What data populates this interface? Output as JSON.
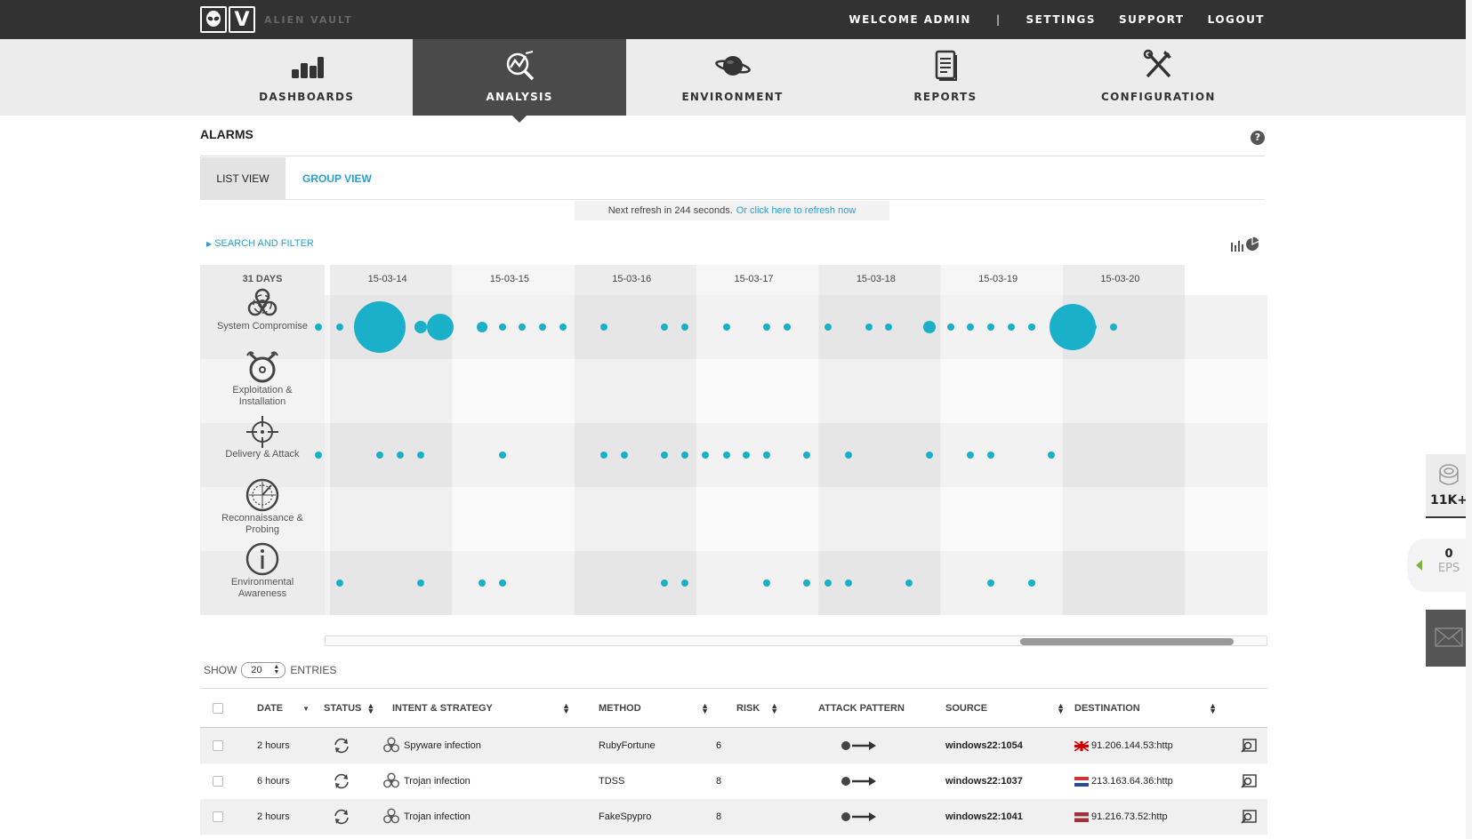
{
  "app": {
    "logo_text": "ALIEN VAULT",
    "logo_letter": "V"
  },
  "topbar": {
    "welcome": "WELCOME ADMIN",
    "separator": "|",
    "settings": "SETTINGS",
    "support": "SUPPORT",
    "logout": "LOGOUT"
  },
  "nav": [
    {
      "label": "DASHBOARDS",
      "icon": "bar-chart-icon",
      "active": false
    },
    {
      "label": "ANALYSIS",
      "icon": "analysis-icon",
      "active": true
    },
    {
      "label": "ENVIRONMENT",
      "icon": "planet-icon",
      "active": false
    },
    {
      "label": "REPORTS",
      "icon": "document-icon",
      "active": false
    },
    {
      "label": "CONFIGURATION",
      "icon": "tools-icon",
      "active": false
    }
  ],
  "page": {
    "title": "ALARMS",
    "help": "?"
  },
  "tabs": {
    "list_view": "LIST VIEW",
    "group_view": "GROUP VIEW"
  },
  "refresh": {
    "text": "Next refresh in 244 seconds.",
    "link": "Or click here to refresh now"
  },
  "search_filter": "SEARCH AND FILTER",
  "timeline": {
    "range_label": "31 DAYS",
    "dates": [
      "15-03-14",
      "15-03-15",
      "15-03-16",
      "15-03-17",
      "15-03-18",
      "15-03-19",
      "15-03-20"
    ],
    "categories": [
      {
        "line1": "System Compromise",
        "line2": "",
        "icon": "biohazard-icon"
      },
      {
        "line1": "Exploitation &",
        "line2": "Installation",
        "icon": "bomb-icon"
      },
      {
        "line1": "Delivery & Attack",
        "line2": "",
        "icon": "crosshair-icon"
      },
      {
        "line1": "Reconnaissance &",
        "line2": "Probing",
        "icon": "radar-icon"
      },
      {
        "line1": "Environmental",
        "line2": "Awareness",
        "icon": "info-icon"
      }
    ]
  },
  "show_entries": {
    "show": "SHOW",
    "value": "20",
    "entries": "ENTRIES"
  },
  "table": {
    "headers": {
      "date": "DATE",
      "status": "STATUS",
      "intent": "INTENT & STRATEGY",
      "method": "METHOD",
      "risk": "RISK",
      "pattern": "ATTACK PATTERN",
      "source": "SOURCE",
      "destination": "DESTINATION"
    },
    "rows": [
      {
        "date": "2 hours",
        "intent": "Spyware infection",
        "method": "RubyFortune",
        "risk": "6",
        "source": "windows22:1054",
        "destination": "91.206.144.53:http",
        "flag": "uk"
      },
      {
        "date": "6 hours",
        "intent": "Trojan infection",
        "method": "TDSS",
        "risk": "8",
        "source": "windows22:1037",
        "destination": "213.163.64.36:http",
        "flag": "nl"
      },
      {
        "date": "2 hours",
        "intent": "Trojan infection",
        "method": "FakeSpypro",
        "risk": "8",
        "source": "windows22:1041",
        "destination": "91.216.73.52:http",
        "flag": "lv"
      }
    ]
  },
  "side": {
    "count": "11K+",
    "eps_value": "0",
    "eps_label": "EPS"
  },
  "colors": {
    "accent": "#2a9fd0",
    "dot": "#1ab0c9",
    "topbar": "#323232",
    "nav_active": "#4a4a4a"
  }
}
